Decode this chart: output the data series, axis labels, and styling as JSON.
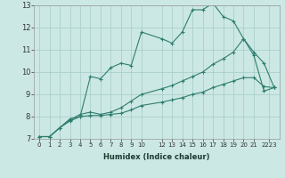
{
  "xlabel": "Humidex (Indice chaleur)",
  "ylabel": "",
  "background_color": "#cce8e4",
  "grid_color": "#aad0cc",
  "line_color": "#2e7d6e",
  "xlim": [
    -0.5,
    23.5
  ],
  "ylim": [
    7,
    13
  ],
  "xtick_labels": [
    "0",
    "1",
    "2",
    "3",
    "4",
    "5",
    "6",
    "7",
    "8",
    "9",
    "10",
    "12",
    "13",
    "14",
    "15",
    "16",
    "17",
    "18",
    "19",
    "20",
    "21",
    "2223"
  ],
  "xtick_positions": [
    0,
    1,
    2,
    3,
    4,
    5,
    6,
    7,
    8,
    9,
    10,
    12,
    13,
    14,
    15,
    16,
    17,
    18,
    19,
    20,
    21,
    22.5
  ],
  "yticks": [
    7,
    8,
    9,
    10,
    11,
    12,
    13
  ],
  "series": [
    {
      "x": [
        0,
        1,
        2,
        3,
        4,
        5,
        6,
        7,
        8,
        9,
        10,
        12,
        13,
        14,
        15,
        16,
        17,
        18,
        19,
        20,
        21,
        22,
        23
      ],
      "y": [
        7.1,
        7.1,
        7.5,
        7.9,
        8.0,
        9.8,
        9.7,
        10.2,
        10.4,
        10.3,
        11.8,
        11.5,
        11.3,
        11.8,
        12.8,
        12.8,
        13.1,
        12.5,
        12.3,
        11.5,
        10.9,
        10.4,
        9.3
      ]
    },
    {
      "x": [
        0,
        1,
        2,
        3,
        4,
        5,
        6,
        7,
        8,
        9,
        10,
        12,
        13,
        14,
        15,
        16,
        17,
        18,
        19,
        20,
        21,
        22,
        23
      ],
      "y": [
        7.1,
        7.1,
        7.5,
        7.85,
        8.1,
        8.2,
        8.1,
        8.2,
        8.4,
        8.7,
        9.0,
        9.25,
        9.4,
        9.6,
        9.8,
        10.0,
        10.35,
        10.6,
        10.9,
        11.5,
        10.75,
        9.15,
        9.3
      ]
    },
    {
      "x": [
        0,
        1,
        2,
        3,
        4,
        5,
        6,
        7,
        8,
        9,
        10,
        12,
        13,
        14,
        15,
        16,
        17,
        18,
        19,
        20,
        21,
        22,
        23
      ],
      "y": [
        7.1,
        7.1,
        7.5,
        7.8,
        8.0,
        8.05,
        8.05,
        8.1,
        8.15,
        8.3,
        8.5,
        8.65,
        8.75,
        8.85,
        9.0,
        9.1,
        9.3,
        9.45,
        9.6,
        9.75,
        9.75,
        9.35,
        9.3
      ]
    }
  ]
}
